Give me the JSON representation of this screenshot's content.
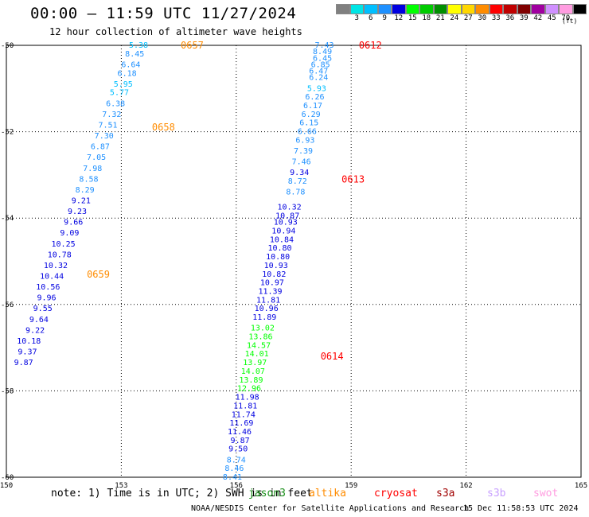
{
  "header": {
    "title": "00:00 – 11:59 UTC 11/27/2024",
    "subtitle": "12 hour collection of altimeter wave heights"
  },
  "legend": {
    "units": "(ft)",
    "bins": [
      {
        "label": "",
        "color": "#808080"
      },
      {
        "label": "3",
        "color": "#00e5e5"
      },
      {
        "label": "6",
        "color": "#00bfff"
      },
      {
        "label": "9",
        "color": "#1e90ff"
      },
      {
        "label": "12",
        "color": "#0000e0"
      },
      {
        "label": "15",
        "color": "#00ff00"
      },
      {
        "label": "18",
        "color": "#00cc00"
      },
      {
        "label": "21",
        "color": "#008f00"
      },
      {
        "label": "24",
        "color": "#ffff00"
      },
      {
        "label": "27",
        "color": "#ffd700"
      },
      {
        "label": "30",
        "color": "#ff8c00"
      },
      {
        "label": "33",
        "color": "#ff0000"
      },
      {
        "label": "36",
        "color": "#c00000"
      },
      {
        "label": "39",
        "color": "#800000"
      },
      {
        "label": "42",
        "color": "#a000a0"
      },
      {
        "label": "45",
        "color": "#d090ff"
      },
      {
        "label": "70",
        "color": "#ff9ce0"
      },
      {
        "label": "",
        "color": "#000000"
      }
    ]
  },
  "footer": {
    "note": "note: 1) Time is in UTC; 2) SWH is in feet",
    "missions": [
      {
        "name": "jason3",
        "color": "#1a8f1a"
      },
      {
        "name": "altika",
        "color": "#ff8c00"
      },
      {
        "name": "cryosat",
        "color": "#ff0000"
      },
      {
        "name": "s3a",
        "color": "#a00000"
      },
      {
        "name": "s3b",
        "color": "#c8a0ff"
      },
      {
        "name": "swot",
        "color": "#ff9ce0"
      }
    ],
    "credit": "NOAA/NESDIS Center for Satellite Applications and Research",
    "timestamp": "15 Dec 11:58:53 UTC 2024"
  },
  "chart_data": {
    "type": "scatter",
    "title": "00:00 – 11:59 UTC 11/27/2024",
    "xlabel": "",
    "ylabel": "",
    "xlim": [
      150,
      165
    ],
    "ylim": [
      -60,
      -50
    ],
    "x_ticks": [
      "150",
      "153",
      "156",
      "159",
      "162",
      "165"
    ],
    "y_ticks": [
      "-50",
      "-52",
      "-54",
      "-56",
      "-58",
      "-60"
    ],
    "grid": true,
    "series": [
      {
        "name": "altika",
        "color": "#ff8c00",
        "points": [
          {
            "lon": 153.7,
            "lat": -50.0,
            "swh": 5.38
          },
          {
            "lon": 153.6,
            "lat": -50.2,
            "swh": 8.45
          },
          {
            "lon": 153.5,
            "lat": -50.45,
            "swh": 6.64
          },
          {
            "lon": 153.4,
            "lat": -50.65,
            "swh": 6.18
          },
          {
            "lon": 153.3,
            "lat": -50.9,
            "swh": 5.95
          },
          {
            "lon": 153.2,
            "lat": -51.1,
            "swh": 5.77
          },
          {
            "lon": 153.1,
            "lat": -51.35,
            "swh": 6.38
          },
          {
            "lon": 153.0,
            "lat": -51.6,
            "swh": 7.32
          },
          {
            "lon": 152.9,
            "lat": -51.85,
            "swh": 7.51
          },
          {
            "lon": 152.8,
            "lat": -52.1,
            "swh": 7.3
          },
          {
            "lon": 152.7,
            "lat": -52.35,
            "swh": 6.87
          },
          {
            "lon": 152.6,
            "lat": -52.6,
            "swh": 7.05
          },
          {
            "lon": 152.5,
            "lat": -52.85,
            "swh": 7.98
          },
          {
            "lon": 152.4,
            "lat": -53.1,
            "swh": 8.58
          },
          {
            "lon": 152.3,
            "lat": -53.35,
            "swh": 8.29
          },
          {
            "lon": 152.2,
            "lat": -53.6,
            "swh": 9.21
          },
          {
            "lon": 152.1,
            "lat": -53.85,
            "swh": 9.23
          },
          {
            "lon": 152.0,
            "lat": -54.1,
            "swh": 9.66
          },
          {
            "lon": 151.9,
            "lat": -54.35,
            "swh": 9.09
          },
          {
            "lon": 151.8,
            "lat": -54.6,
            "swh": 10.25
          },
          {
            "lon": 151.7,
            "lat": -54.85,
            "swh": 10.78
          },
          {
            "lon": 151.6,
            "lat": -55.1,
            "swh": 10.32
          },
          {
            "lon": 151.5,
            "lat": -55.35,
            "swh": 10.44
          },
          {
            "lon": 151.4,
            "lat": -55.6,
            "swh": 10.56
          },
          {
            "lon": 151.3,
            "lat": -55.85,
            "swh": 9.96
          },
          {
            "lon": 151.2,
            "lat": -56.1,
            "swh": 9.55
          },
          {
            "lon": 151.1,
            "lat": -56.35,
            "swh": 9.64
          },
          {
            "lon": 151.0,
            "lat": -56.6,
            "swh": 9.22
          },
          {
            "lon": 150.9,
            "lat": -56.85,
            "swh": 10.18
          },
          {
            "lon": 150.8,
            "lat": -57.1,
            "swh": 9.37
          },
          {
            "lon": 150.7,
            "lat": -57.35,
            "swh": 9.87
          }
        ],
        "time_labels": [
          {
            "text": "0657",
            "lon": 154.55,
            "lat": -50.0
          },
          {
            "text": "0658",
            "lon": 153.8,
            "lat": -51.9
          },
          {
            "text": "0659",
            "lon": 152.1,
            "lat": -55.3
          }
        ]
      },
      {
        "name": "cryosat",
        "color": "#ff0000",
        "points": [
          {
            "lon": 158.55,
            "lat": -50.0,
            "swh": 7.43
          },
          {
            "lon": 158.5,
            "lat": -50.15,
            "swh": 8.49
          },
          {
            "lon": 158.5,
            "lat": -50.3,
            "swh": 6.45
          },
          {
            "lon": 158.45,
            "lat": -50.45,
            "swh": 6.85
          },
          {
            "lon": 158.4,
            "lat": -50.6,
            "swh": 6.47
          },
          {
            "lon": 158.4,
            "lat": -50.75,
            "swh": 6.24
          },
          {
            "lon": 158.35,
            "lat": -51.0,
            "swh": 5.93
          },
          {
            "lon": 158.3,
            "lat": -51.2,
            "swh": 6.26
          },
          {
            "lon": 158.25,
            "lat": -51.4,
            "swh": 6.17
          },
          {
            "lon": 158.2,
            "lat": -51.6,
            "swh": 6.29
          },
          {
            "lon": 158.15,
            "lat": -51.8,
            "swh": 6.15
          },
          {
            "lon": 158.1,
            "lat": -52.0,
            "swh": 6.66
          },
          {
            "lon": 158.05,
            "lat": -52.2,
            "swh": 6.93
          },
          {
            "lon": 158.0,
            "lat": -52.45,
            "swh": 7.39
          },
          {
            "lon": 157.95,
            "lat": -52.7,
            "swh": 7.46
          },
          {
            "lon": 157.9,
            "lat": -52.95,
            "swh": 9.34
          },
          {
            "lon": 157.85,
            "lat": -53.15,
            "swh": 8.72
          },
          {
            "lon": 157.8,
            "lat": -53.4,
            "swh": 8.78
          },
          {
            "lon": 157.7,
            "lat": -53.75,
            "swh": 10.32
          },
          {
            "lon": 157.65,
            "lat": -53.95,
            "swh": 10.87
          },
          {
            "lon": 157.6,
            "lat": -54.1,
            "swh": 10.93
          },
          {
            "lon": 157.55,
            "lat": -54.3,
            "swh": 10.94
          },
          {
            "lon": 157.5,
            "lat": -54.5,
            "swh": 10.84
          },
          {
            "lon": 157.45,
            "lat": -54.7,
            "swh": 10.8
          },
          {
            "lon": 157.4,
            "lat": -54.9,
            "swh": 10.8
          },
          {
            "lon": 157.35,
            "lat": -55.1,
            "swh": 10.93
          },
          {
            "lon": 157.3,
            "lat": -55.3,
            "swh": 10.82
          },
          {
            "lon": 157.25,
            "lat": -55.5,
            "swh": 10.97
          },
          {
            "lon": 157.2,
            "lat": -55.7,
            "swh": 11.39
          },
          {
            "lon": 157.15,
            "lat": -55.9,
            "swh": 11.81
          },
          {
            "lon": 157.1,
            "lat": -56.1,
            "swh": 10.96
          },
          {
            "lon": 157.05,
            "lat": -56.3,
            "swh": 11.89
          },
          {
            "lon": 157.0,
            "lat": -56.55,
            "swh": 13.02
          },
          {
            "lon": 156.95,
            "lat": -56.75,
            "swh": 13.86
          },
          {
            "lon": 156.9,
            "lat": -56.95,
            "swh": 14.57
          },
          {
            "lon": 156.85,
            "lat": -57.15,
            "swh": 14.01
          },
          {
            "lon": 156.8,
            "lat": -57.35,
            "swh": 13.97
          },
          {
            "lon": 156.75,
            "lat": -57.55,
            "swh": 14.07
          },
          {
            "lon": 156.7,
            "lat": -57.75,
            "swh": 13.89
          },
          {
            "lon": 156.65,
            "lat": -57.95,
            "swh": 12.96
          },
          {
            "lon": 156.6,
            "lat": -58.15,
            "swh": 11.98
          },
          {
            "lon": 156.55,
            "lat": -58.35,
            "swh": 11.81
          },
          {
            "lon": 156.5,
            "lat": -58.55,
            "swh": 11.74
          },
          {
            "lon": 156.45,
            "lat": -58.75,
            "swh": 11.69
          },
          {
            "lon": 156.4,
            "lat": -58.95,
            "swh": 11.46
          },
          {
            "lon": 156.35,
            "lat": -59.15,
            "swh": 9.87
          },
          {
            "lon": 156.3,
            "lat": -59.35,
            "swh": 9.5
          },
          {
            "lon": 156.25,
            "lat": -59.6,
            "swh": 8.74
          },
          {
            "lon": 156.2,
            "lat": -59.8,
            "swh": 8.46
          },
          {
            "lon": 156.15,
            "lat": -60.0,
            "swh": 8.41
          }
        ],
        "time_labels": [
          {
            "text": "0612",
            "lon": 159.2,
            "lat": -50.0
          },
          {
            "text": "0613",
            "lon": 158.75,
            "lat": -53.1
          },
          {
            "text": "0614",
            "lon": 158.2,
            "lat": -57.2
          }
        ]
      }
    ]
  }
}
